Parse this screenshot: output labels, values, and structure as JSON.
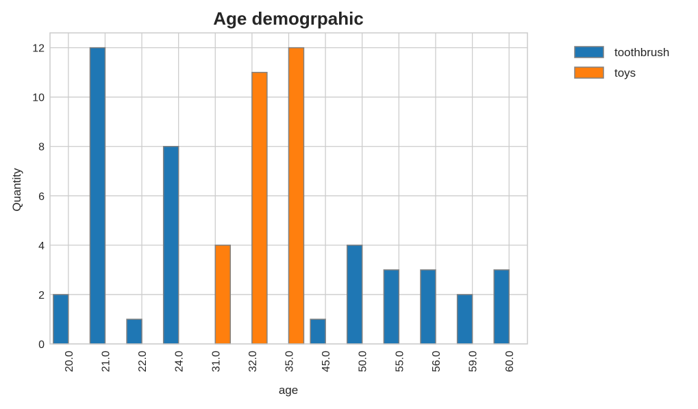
{
  "chart_data": {
    "type": "bar",
    "title": "Age demogrpahic",
    "xlabel": "age",
    "ylabel": "Quantity",
    "categories": [
      "20.0",
      "21.0",
      "22.0",
      "24.0",
      "31.0",
      "32.0",
      "35.0",
      "45.0",
      "50.0",
      "55.0",
      "56.0",
      "59.0",
      "60.0"
    ],
    "series": [
      {
        "name": "toothbrush",
        "color": "#1f77b4",
        "values": [
          2,
          12,
          1,
          8,
          0,
          0,
          0,
          1,
          4,
          3,
          3,
          2,
          3
        ]
      },
      {
        "name": "toys",
        "color": "#ff7f0e",
        "values": [
          0,
          0,
          0,
          0,
          4,
          11,
          12,
          0,
          0,
          0,
          0,
          0,
          0
        ]
      }
    ],
    "ylim": [
      0,
      12.6
    ],
    "yticks": [
      0,
      2,
      4,
      6,
      8,
      10,
      12
    ],
    "grid": true,
    "legend_position": "outside-top-right",
    "bar_edge_color": "#808080",
    "grid_color": "#cccccc"
  }
}
